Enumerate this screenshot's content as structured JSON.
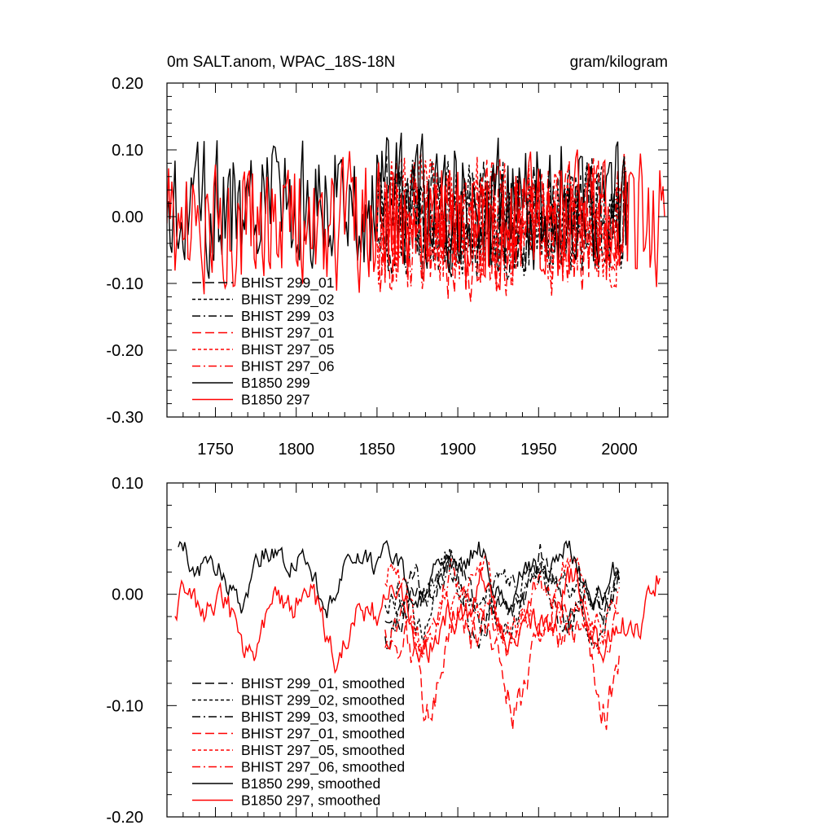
{
  "chart_data": [
    {
      "type": "line",
      "title": "0m SALT.anom, WPAC_18S-18N",
      "units": "gram/kilogram",
      "xlim": [
        1720,
        2030
      ],
      "ylim": [
        -0.3,
        0.2
      ],
      "x_ticks": [
        1750,
        1800,
        1850,
        1900,
        1950,
        2000
      ],
      "x_tick_labels": [
        "1750",
        "1800",
        "1850",
        "1900",
        "1950",
        "2000"
      ],
      "y_ticks": [
        0.2,
        0.1,
        0.0,
        -0.1,
        -0.2,
        -0.3
      ],
      "y_tick_labels": [
        "0.20",
        "0.10",
        "0.00",
        "-0.10",
        "-0.20",
        "-0.30"
      ],
      "legend_position": "bottom-left",
      "series": [
        {
          "name": "BHIST 299_01",
          "color": "#000000",
          "dash": "long-dash",
          "x_range": [
            1850,
            2005
          ],
          "mean": 0.0,
          "amplitude": 0.08,
          "seed": 11
        },
        {
          "name": "BHIST 299_02",
          "color": "#000000",
          "dash": "short-dash",
          "x_range": [
            1850,
            2005
          ],
          "mean": 0.0,
          "amplitude": 0.08,
          "seed": 23
        },
        {
          "name": "BHIST 299_03",
          "color": "#000000",
          "dash": "dash-dot",
          "x_range": [
            1850,
            2005
          ],
          "mean": 0.0,
          "amplitude": 0.08,
          "seed": 37
        },
        {
          "name": "BHIST 297_01",
          "color": "#ff0000",
          "dash": "long-dash",
          "x_range": [
            1850,
            2005
          ],
          "mean": -0.02,
          "amplitude": 0.09,
          "seed": 41
        },
        {
          "name": "BHIST 297_05",
          "color": "#ff0000",
          "dash": "short-dash",
          "x_range": [
            1850,
            2005
          ],
          "mean": -0.01,
          "amplitude": 0.09,
          "seed": 53
        },
        {
          "name": "BHIST 297_06",
          "color": "#ff0000",
          "dash": "dash-dot",
          "x_range": [
            1850,
            2005
          ],
          "mean": -0.02,
          "amplitude": 0.09,
          "seed": 67
        },
        {
          "name": "B1850 299",
          "color": "#000000",
          "dash": "solid",
          "x_range": [
            1720,
            2005
          ],
          "mean": 0.02,
          "amplitude": 0.09,
          "seed": 79
        },
        {
          "name": "B1850 297",
          "color": "#ff0000",
          "dash": "solid",
          "x_range": [
            1720,
            2028
          ],
          "mean": -0.01,
          "amplitude": 0.09,
          "seed": 97
        }
      ]
    },
    {
      "type": "line",
      "title": "",
      "xlim": [
        1720,
        2030
      ],
      "ylim": [
        -0.2,
        0.1
      ],
      "x_ticks": [
        1750,
        1800,
        1850,
        1900,
        1950,
        2000
      ],
      "x_tick_labels": [],
      "y_ticks": [
        0.1,
        0.0,
        -0.1,
        -0.2
      ],
      "y_tick_labels": [
        "0.10",
        "0.00",
        "-0.10",
        "-0.20"
      ],
      "legend_position": "bottom-left",
      "series": [
        {
          "name": "BHIST 299_01, smoothed",
          "color": "#000000",
          "dash": "long-dash",
          "x_range": [
            1855,
            2000
          ],
          "mean": 0.0,
          "amplitude": 0.05,
          "seed": 11
        },
        {
          "name": "BHIST 299_02, smoothed",
          "color": "#000000",
          "dash": "short-dash",
          "x_range": [
            1855,
            2000
          ],
          "mean": 0.0,
          "amplitude": 0.05,
          "seed": 23
        },
        {
          "name": "BHIST 299_03, smoothed",
          "color": "#000000",
          "dash": "dash-dot",
          "x_range": [
            1855,
            2000
          ],
          "mean": 0.0,
          "amplitude": 0.05,
          "seed": 37
        },
        {
          "name": "BHIST 297_01, smoothed",
          "color": "#ff0000",
          "dash": "long-dash",
          "x_range": [
            1855,
            2000
          ],
          "mean": -0.05,
          "amplitude": 0.07,
          "seed": 41
        },
        {
          "name": "BHIST 297_05, smoothed",
          "color": "#ff0000",
          "dash": "short-dash",
          "x_range": [
            1855,
            2000
          ],
          "mean": -0.01,
          "amplitude": 0.05,
          "seed": 53
        },
        {
          "name": "BHIST 297_06, smoothed",
          "color": "#ff0000",
          "dash": "dash-dot",
          "x_range": [
            1855,
            2000
          ],
          "mean": -0.02,
          "amplitude": 0.05,
          "seed": 67
        },
        {
          "name": "B1850 299, smoothed",
          "color": "#000000",
          "dash": "solid",
          "x_range": [
            1727,
            2000
          ],
          "mean": 0.02,
          "amplitude": 0.04,
          "seed": 79
        },
        {
          "name": "B1850 297, smoothed",
          "color": "#ff0000",
          "dash": "solid",
          "x_range": [
            1725,
            2025
          ],
          "mean": -0.02,
          "amplitude": 0.05,
          "seed": 97
        }
      ]
    }
  ]
}
